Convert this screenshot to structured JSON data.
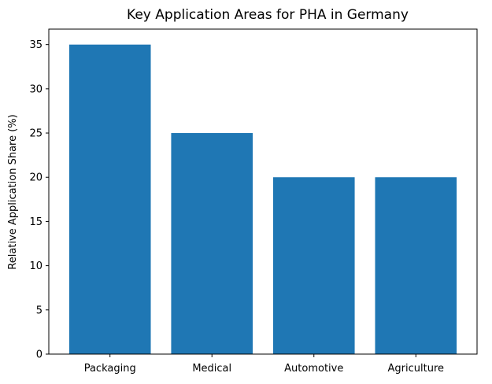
{
  "chart_data": {
    "type": "bar",
    "title": "Key Application Areas for PHA in Germany",
    "xlabel": "",
    "ylabel": "Relative Application Share (%)",
    "categories": [
      "Packaging",
      "Medical",
      "Automotive",
      "Agriculture"
    ],
    "values": [
      35,
      25,
      20,
      20
    ],
    "ylim": [
      0,
      36.75
    ],
    "yticks": [
      0,
      5,
      10,
      15,
      20,
      25,
      30,
      35
    ],
    "grid": false,
    "bar_color": "#1f77b4"
  }
}
